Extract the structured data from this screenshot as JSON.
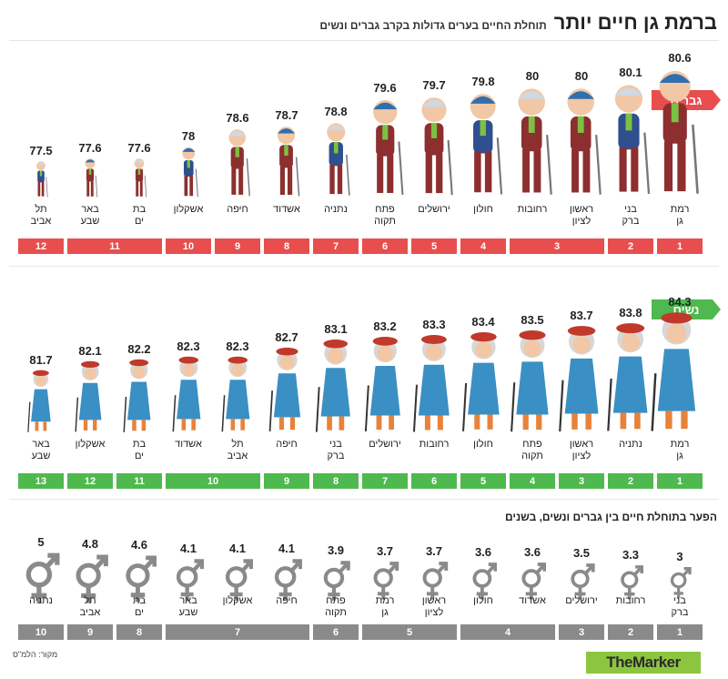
{
  "header": {
    "title": "ברמת גן חיים יותר",
    "subtitle": "תוחלת החיים בערים גדולות בקרב גברים ונשים"
  },
  "colors": {
    "men": "#e94e4e",
    "women": "#4fb84e",
    "gap": "#8a8a8a",
    "logo": "#8cc63f"
  },
  "icons": {
    "men": "elderly-man-icon",
    "women": "elderly-woman-icon",
    "gap": "gender-symbol-icon"
  },
  "chart_data": [
    {
      "type": "bar",
      "label": "גברים",
      "categories": [
        "רמת גן",
        "בני ברק",
        "ראשון לציון",
        "רחובות",
        "חולון",
        "ירושלים",
        "פתח תקוה",
        "נתניה",
        "אשדוד",
        "חיפה",
        "אשקלון",
        "בת ים",
        "באר שבע",
        "תל אביב"
      ],
      "values": [
        80.6,
        80.1,
        80,
        80,
        79.8,
        79.7,
        79.6,
        78.8,
        78.7,
        78.6,
        78,
        77.6,
        77.6,
        77.5
      ],
      "ranks": [
        {
          "label": "1",
          "span": 1
        },
        {
          "label": "2",
          "span": 1
        },
        {
          "label": "3",
          "span": 2
        },
        {
          "label": "4",
          "span": 1
        },
        {
          "label": "5",
          "span": 1
        },
        {
          "label": "6",
          "span": 1
        },
        {
          "label": "7",
          "span": 1
        },
        {
          "label": "8",
          "span": 1
        },
        {
          "label": "9",
          "span": 1
        },
        {
          "label": "10",
          "span": 1
        },
        {
          "label": "11",
          "span": 2
        },
        {
          "label": "12",
          "span": 1
        }
      ]
    },
    {
      "type": "bar",
      "label": "נשים",
      "categories": [
        "רמת גן",
        "נתניה",
        "ראשון לציון",
        "פתח תקוה",
        "חולון",
        "רחובות",
        "ירושלים",
        "בני ברק",
        "חיפה",
        "תל אביב",
        "אשדוד",
        "בת ים",
        "אשקלון",
        "באר שבע"
      ],
      "values": [
        84.3,
        83.8,
        83.7,
        83.5,
        83.4,
        83.3,
        83.2,
        83.1,
        82.7,
        82.3,
        82.3,
        82.2,
        82.1,
        81.7
      ],
      "ranks": [
        {
          "label": "1",
          "span": 1
        },
        {
          "label": "2",
          "span": 1
        },
        {
          "label": "3",
          "span": 1
        },
        {
          "label": "4",
          "span": 1
        },
        {
          "label": "5",
          "span": 1
        },
        {
          "label": "6",
          "span": 1
        },
        {
          "label": "7",
          "span": 1
        },
        {
          "label": "8",
          "span": 1
        },
        {
          "label": "9",
          "span": 1
        },
        {
          "label": "10",
          "span": 2
        },
        {
          "label": "11",
          "span": 1
        },
        {
          "label": "12",
          "span": 1
        },
        {
          "label": "13",
          "span": 1
        }
      ]
    },
    {
      "type": "bar",
      "title": "הפער בתוחלת חיים בין גברים ונשים, בשנים",
      "categories": [
        "בני ברק",
        "רחובות",
        "ירושלים",
        "אשדוד",
        "חולון",
        "ראשון לציון",
        "רמת גן",
        "פתח תקוה",
        "חיפה",
        "אשקלון",
        "באר שבע",
        "בת ים",
        "תל אביב",
        "נתניה"
      ],
      "values": [
        3,
        3.3,
        3.5,
        3.6,
        3.6,
        3.7,
        3.7,
        3.9,
        4.1,
        4.1,
        4.1,
        4.6,
        4.8,
        5
      ],
      "ranks": [
        {
          "label": "1",
          "span": 1
        },
        {
          "label": "2",
          "span": 1
        },
        {
          "label": "3",
          "span": 1
        },
        {
          "label": "4",
          "span": 2
        },
        {
          "label": "5",
          "span": 2
        },
        {
          "label": "6",
          "span": 1
        },
        {
          "label": "7",
          "span": 3
        },
        {
          "label": "8",
          "span": 1
        },
        {
          "label": "9",
          "span": 1
        },
        {
          "label": "10",
          "span": 1
        }
      ]
    }
  ],
  "footer": {
    "source": "מקור: הלמ\"ס",
    "logo_text": "TheMarker"
  }
}
